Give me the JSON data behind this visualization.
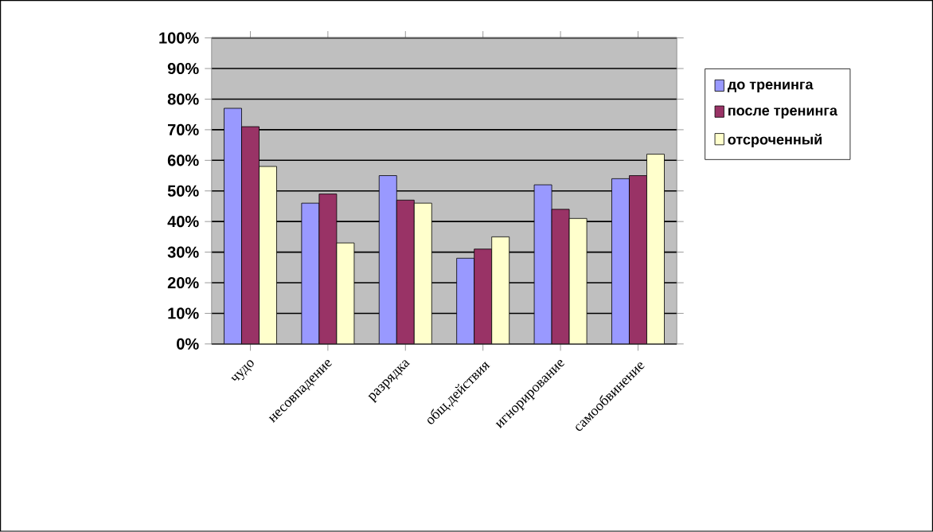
{
  "chart_data": {
    "type": "bar",
    "categories": [
      "чудо",
      "несовпадение",
      "разрядка",
      "общ.действия",
      "игнорирование",
      "самообвинение"
    ],
    "series": [
      {
        "name": "до тренинга",
        "color": "#9999ff",
        "values": [
          77,
          46,
          55,
          28,
          52,
          54
        ]
      },
      {
        "name": "после тренинга",
        "color": "#993366",
        "values": [
          71,
          49,
          47,
          31,
          44,
          55
        ]
      },
      {
        "name": "отсроченный",
        "color": "#ffffcc",
        "values": [
          58,
          33,
          46,
          35,
          41,
          62
        ]
      }
    ],
    "ylim": [
      0,
      100
    ],
    "yticks": [
      {
        "value": 0,
        "label": "0%"
      },
      {
        "value": 10,
        "label": "10%"
      },
      {
        "value": 20,
        "label": "20%"
      },
      {
        "value": 30,
        "label": "30%"
      },
      {
        "value": 40,
        "label": "40%"
      },
      {
        "value": 50,
        "label": "50%"
      },
      {
        "value": 60,
        "label": "60%"
      },
      {
        "value": 70,
        "label": "70%"
      },
      {
        "value": 80,
        "label": "80%"
      },
      {
        "value": 90,
        "label": "90%"
      },
      {
        "value": 100,
        "label": "100%"
      }
    ],
    "grid": "y",
    "legend": "right"
  }
}
